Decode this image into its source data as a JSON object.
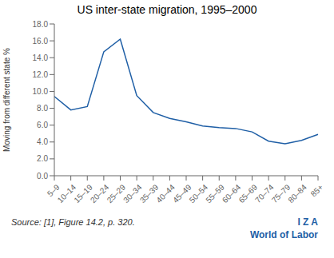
{
  "chart_data": {
    "type": "line",
    "title": "US inter-state migration, 1995–2000",
    "ylabel": "Moving from different state %",
    "categories": [
      "5–9",
      "10–14",
      "15–19",
      "20–24",
      "25–29",
      "30–34",
      "35–39",
      "40–44",
      "45–49",
      "50–54",
      "55–59",
      "60–64",
      "65–69",
      "70–74",
      "75–79",
      "80–84",
      "85+"
    ],
    "values": [
      9.4,
      7.8,
      8.2,
      14.7,
      16.2,
      9.5,
      7.5,
      6.8,
      6.4,
      5.9,
      5.7,
      5.6,
      5.2,
      4.1,
      3.8,
      4.2,
      4.9
    ],
    "color": "#1f5fa6",
    "ylim": [
      0.0,
      18.0
    ],
    "yticks": [
      {
        "value": 0,
        "label": "0.0"
      },
      {
        "value": 2,
        "label": "2.0"
      },
      {
        "value": 4,
        "label": "4.0"
      },
      {
        "value": 6,
        "label": "6.0"
      },
      {
        "value": 8,
        "label": "8.0"
      },
      {
        "value": 10,
        "label": "10.0"
      },
      {
        "value": 12,
        "label": "12.0"
      },
      {
        "value": 14,
        "label": "14.0"
      },
      {
        "value": 16,
        "label": "16.0"
      },
      {
        "value": 18,
        "label": "18.0"
      }
    ],
    "grid": false,
    "annotations": [
      "Source: [1], Figure 14.2, p. 320.",
      "I Z A",
      "World of Labor"
    ]
  }
}
